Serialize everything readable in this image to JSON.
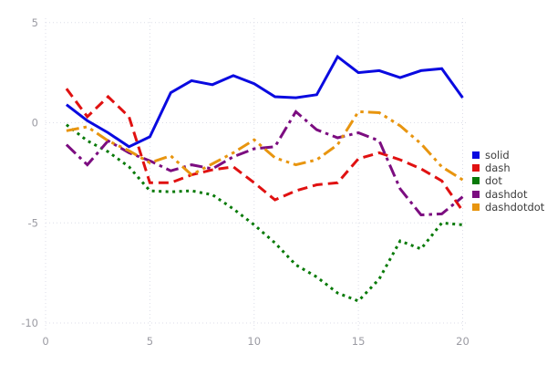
{
  "chart_data": {
    "type": "line",
    "title": "",
    "xlabel": "",
    "ylabel": "",
    "xlim": [
      0,
      20
    ],
    "ylim": [
      -10,
      5
    ],
    "x_ticks": [
      "0",
      "5",
      "10",
      "15",
      "20"
    ],
    "x_tick_values": [
      0,
      5,
      10,
      15,
      20
    ],
    "y_ticks": [
      "5",
      "0",
      "-5",
      "-10"
    ],
    "y_tick_values": [
      5,
      0,
      -5,
      -10
    ],
    "grid": "dotted",
    "legend_position": "right",
    "x": [
      1,
      2,
      3,
      4,
      5,
      6,
      7,
      8,
      9,
      10,
      11,
      12,
      13,
      14,
      15,
      16,
      17,
      18,
      19,
      20
    ],
    "series": [
      {
        "name": "solid",
        "color": "#0a0ae0",
        "dash": "solid",
        "values": [
          0.9,
          0.1,
          -0.5,
          -1.2,
          -0.7,
          1.5,
          2.1,
          1.9,
          2.35,
          1.95,
          1.3,
          1.25,
          1.4,
          3.3,
          2.5,
          2.6,
          2.25,
          2.6,
          2.7,
          1.25
        ]
      },
      {
        "name": "dash",
        "color": "#e01111",
        "dash": "dash",
        "values": [
          1.7,
          0.3,
          1.3,
          0.3,
          -3.0,
          -3.0,
          -2.6,
          -2.35,
          -2.2,
          -3.0,
          -3.85,
          -3.4,
          -3.1,
          -3.0,
          -1.8,
          -1.5,
          -1.85,
          -2.3,
          -2.9,
          -4.4
        ]
      },
      {
        "name": "dot",
        "color": "#087a08",
        "dash": "dot",
        "values": [
          -0.1,
          -0.9,
          -1.45,
          -2.2,
          -3.4,
          -3.45,
          -3.4,
          -3.6,
          -4.3,
          -5.1,
          -6.0,
          -7.1,
          -7.7,
          -8.5,
          -8.9,
          -7.8,
          -5.9,
          -6.3,
          -5.0,
          -5.1
        ]
      },
      {
        "name": "dashdot",
        "color": "#7c0d80",
        "dash": "dashdot",
        "values": [
          -1.1,
          -2.1,
          -0.9,
          -1.5,
          -1.9,
          -2.4,
          -2.1,
          -2.3,
          -1.7,
          -1.3,
          -1.2,
          0.55,
          -0.35,
          -0.75,
          -0.5,
          -0.9,
          -3.3,
          -4.6,
          -4.55,
          -3.7
        ]
      },
      {
        "name": "dashdotdot",
        "color": "#e8950f",
        "dash": "dashdotdot",
        "values": [
          -0.4,
          -0.2,
          -0.9,
          -1.4,
          -2.0,
          -1.65,
          -2.6,
          -2.05,
          -1.5,
          -0.85,
          -1.75,
          -2.1,
          -1.85,
          -1.1,
          0.55,
          0.5,
          -0.15,
          -1.05,
          -2.2,
          -2.85
        ]
      }
    ],
    "style": {
      "grid_color": "#dcdde8",
      "tick_label_color": "#9b9ba3",
      "legend_text_color": "#3b3b3b",
      "background": "#ffffff",
      "line_width": 3
    }
  }
}
